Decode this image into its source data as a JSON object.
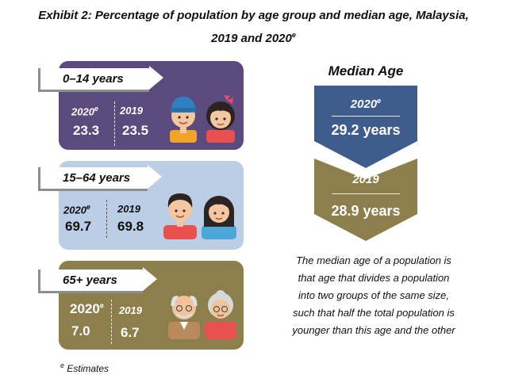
{
  "title": {
    "line1": "Exhibit 2: Percentage of population by age group and median age, Malaysia,",
    "line2_text": "2019 and 2020",
    "line2_sup": "e"
  },
  "groups": [
    {
      "label": "0–14 years",
      "year_a": "2020",
      "year_a_sup": "e",
      "value_a": "23.3",
      "year_b": "2019",
      "value_b": "23.5",
      "icon": "children-icon"
    },
    {
      "label": "15–64 years",
      "year_a": "2020",
      "year_a_sup": "e",
      "value_a": "69.7",
      "year_b": "2019",
      "value_b": "69.8",
      "icon": "adults-icon"
    },
    {
      "label": "65+ years",
      "year_a": "2020",
      "year_a_sup": "e",
      "value_a": "7.0",
      "year_b": "2019",
      "value_b": "6.7",
      "icon": "elderly-icon"
    }
  ],
  "median": {
    "title": "Median Age",
    "items": [
      {
        "year": "2020",
        "year_sup": "e",
        "value": "29.2 years",
        "color": "#3f5d8c"
      },
      {
        "year": "2019",
        "value": "28.9 years",
        "color": "#8c7f4c"
      }
    ]
  },
  "note": {
    "lines": [
      "The median age of a population is",
      "that age that divides a population",
      "into two groups of the same size,",
      "such that half the total population is",
      "younger than this age and the other"
    ]
  },
  "footnote": {
    "sup": "e",
    "text": "Estimates"
  },
  "colors": {
    "panel_children": "#5b4a7e",
    "panel_adults": "#bccde6",
    "panel_elderly": "#8c7f4c"
  }
}
